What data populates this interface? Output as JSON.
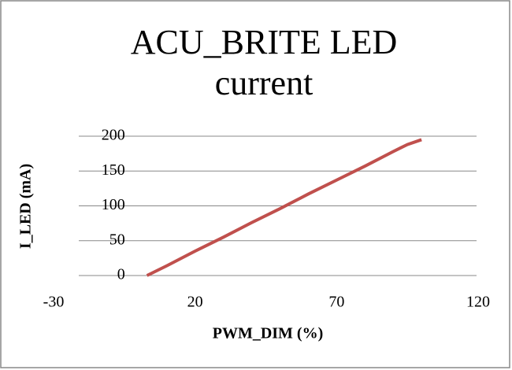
{
  "chart_data": {
    "type": "line",
    "title": "ACU_BRITE LED current",
    "x_label": "PWM_DIM (%)",
    "y_label": "I_LED (mA)",
    "x": [
      3,
      10,
      20,
      30,
      40,
      50,
      60,
      70,
      80,
      90,
      95,
      100
    ],
    "series": [
      {
        "name": "I_LED",
        "color": "#c0504d",
        "values": [
          0,
          14,
          35,
          55,
          76,
          96,
          117,
          137,
          157,
          178,
          188,
          195
        ]
      }
    ],
    "xlim": [
      -30,
      120
    ],
    "xticks": [
      -30,
      20,
      70,
      120
    ],
    "ylim": [
      0,
      200
    ],
    "yticks": [
      0,
      50,
      100,
      150,
      200
    ],
    "grid": true
  }
}
